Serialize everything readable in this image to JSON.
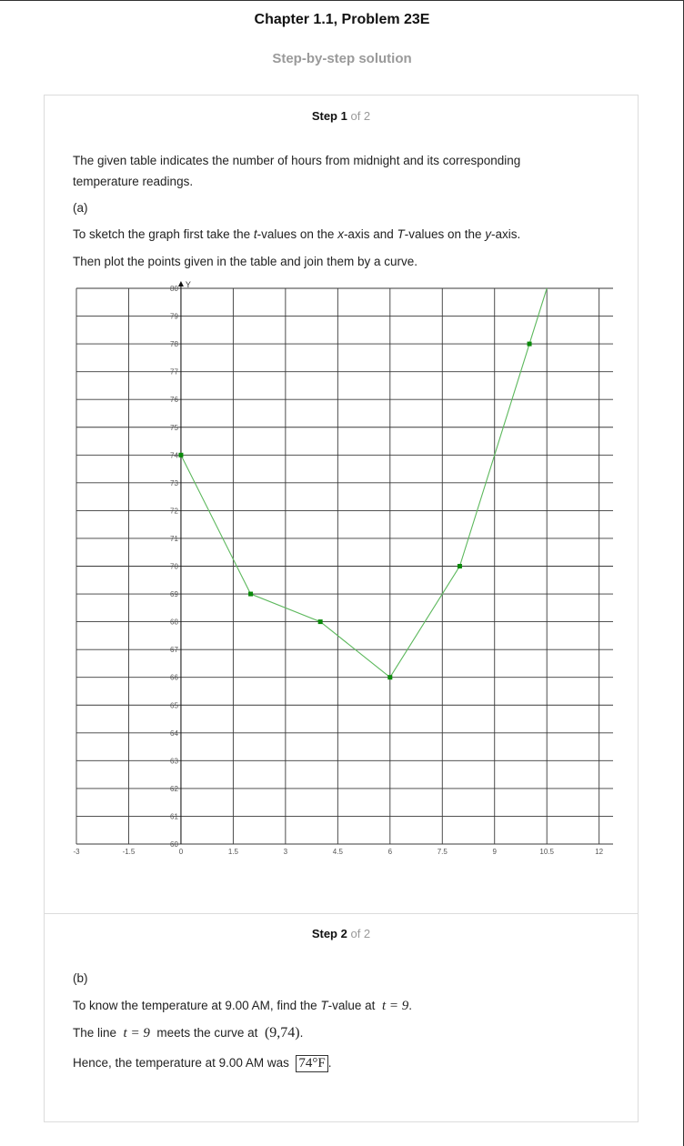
{
  "header": {
    "title": "Chapter 1.1, Problem 23E",
    "subtitle": "Step-by-step solution"
  },
  "step1": {
    "label": "Step 1",
    "of": "of 2",
    "para1": "The given table indicates the number of hours from midnight and its corresponding temperature readings.",
    "part": "(a)",
    "para2": {
      "a": "To sketch the graph first take the ",
      "t": "t",
      "b": "-values on the ",
      "x": "x",
      "c": "-axis and ",
      "T": "T",
      "d": "-values on the ",
      "y": "y",
      "e": "-axis."
    },
    "para3": "Then plot the points given in the table and join them by a curve."
  },
  "chart_data": {
    "type": "line",
    "y_axis_label": "Y",
    "x_ticks": [
      "-3",
      "-1.5",
      "0",
      "1.5",
      "3",
      "4.5",
      "6",
      "7.5",
      "9",
      "10.5",
      "12"
    ],
    "y_ticks": [
      "60",
      "61",
      "62",
      "63",
      "64",
      "65",
      "66",
      "67",
      "68",
      "69",
      "70",
      "71",
      "72",
      "73",
      "74",
      "75",
      "76",
      "77",
      "78",
      "79",
      "80"
    ],
    "xlim": [
      -3,
      12.4
    ],
    "ylim": [
      60,
      80
    ],
    "x": [
      0,
      2,
      4,
      6,
      8,
      10
    ],
    "y": [
      74,
      69,
      68,
      66,
      70,
      78
    ],
    "grid": true,
    "line_color": "#5cb85c",
    "marker_color": "#0a8a0a"
  },
  "step2": {
    "label": "Step 2",
    "of": "of 2",
    "part": "(b)",
    "line1": {
      "a": "To know the temperature at 9.00 AM, find the ",
      "T": "T",
      "b": "-value at",
      "math": "t = 9",
      "end": "."
    },
    "line2": {
      "a": "The line",
      "math": "t = 9",
      "b": "meets the curve at",
      "point": "(9,74)",
      "end": "."
    },
    "line3": {
      "a": "Hence, the temperature at 9.00 AM was",
      "answer": "74°F",
      "end": "."
    }
  }
}
